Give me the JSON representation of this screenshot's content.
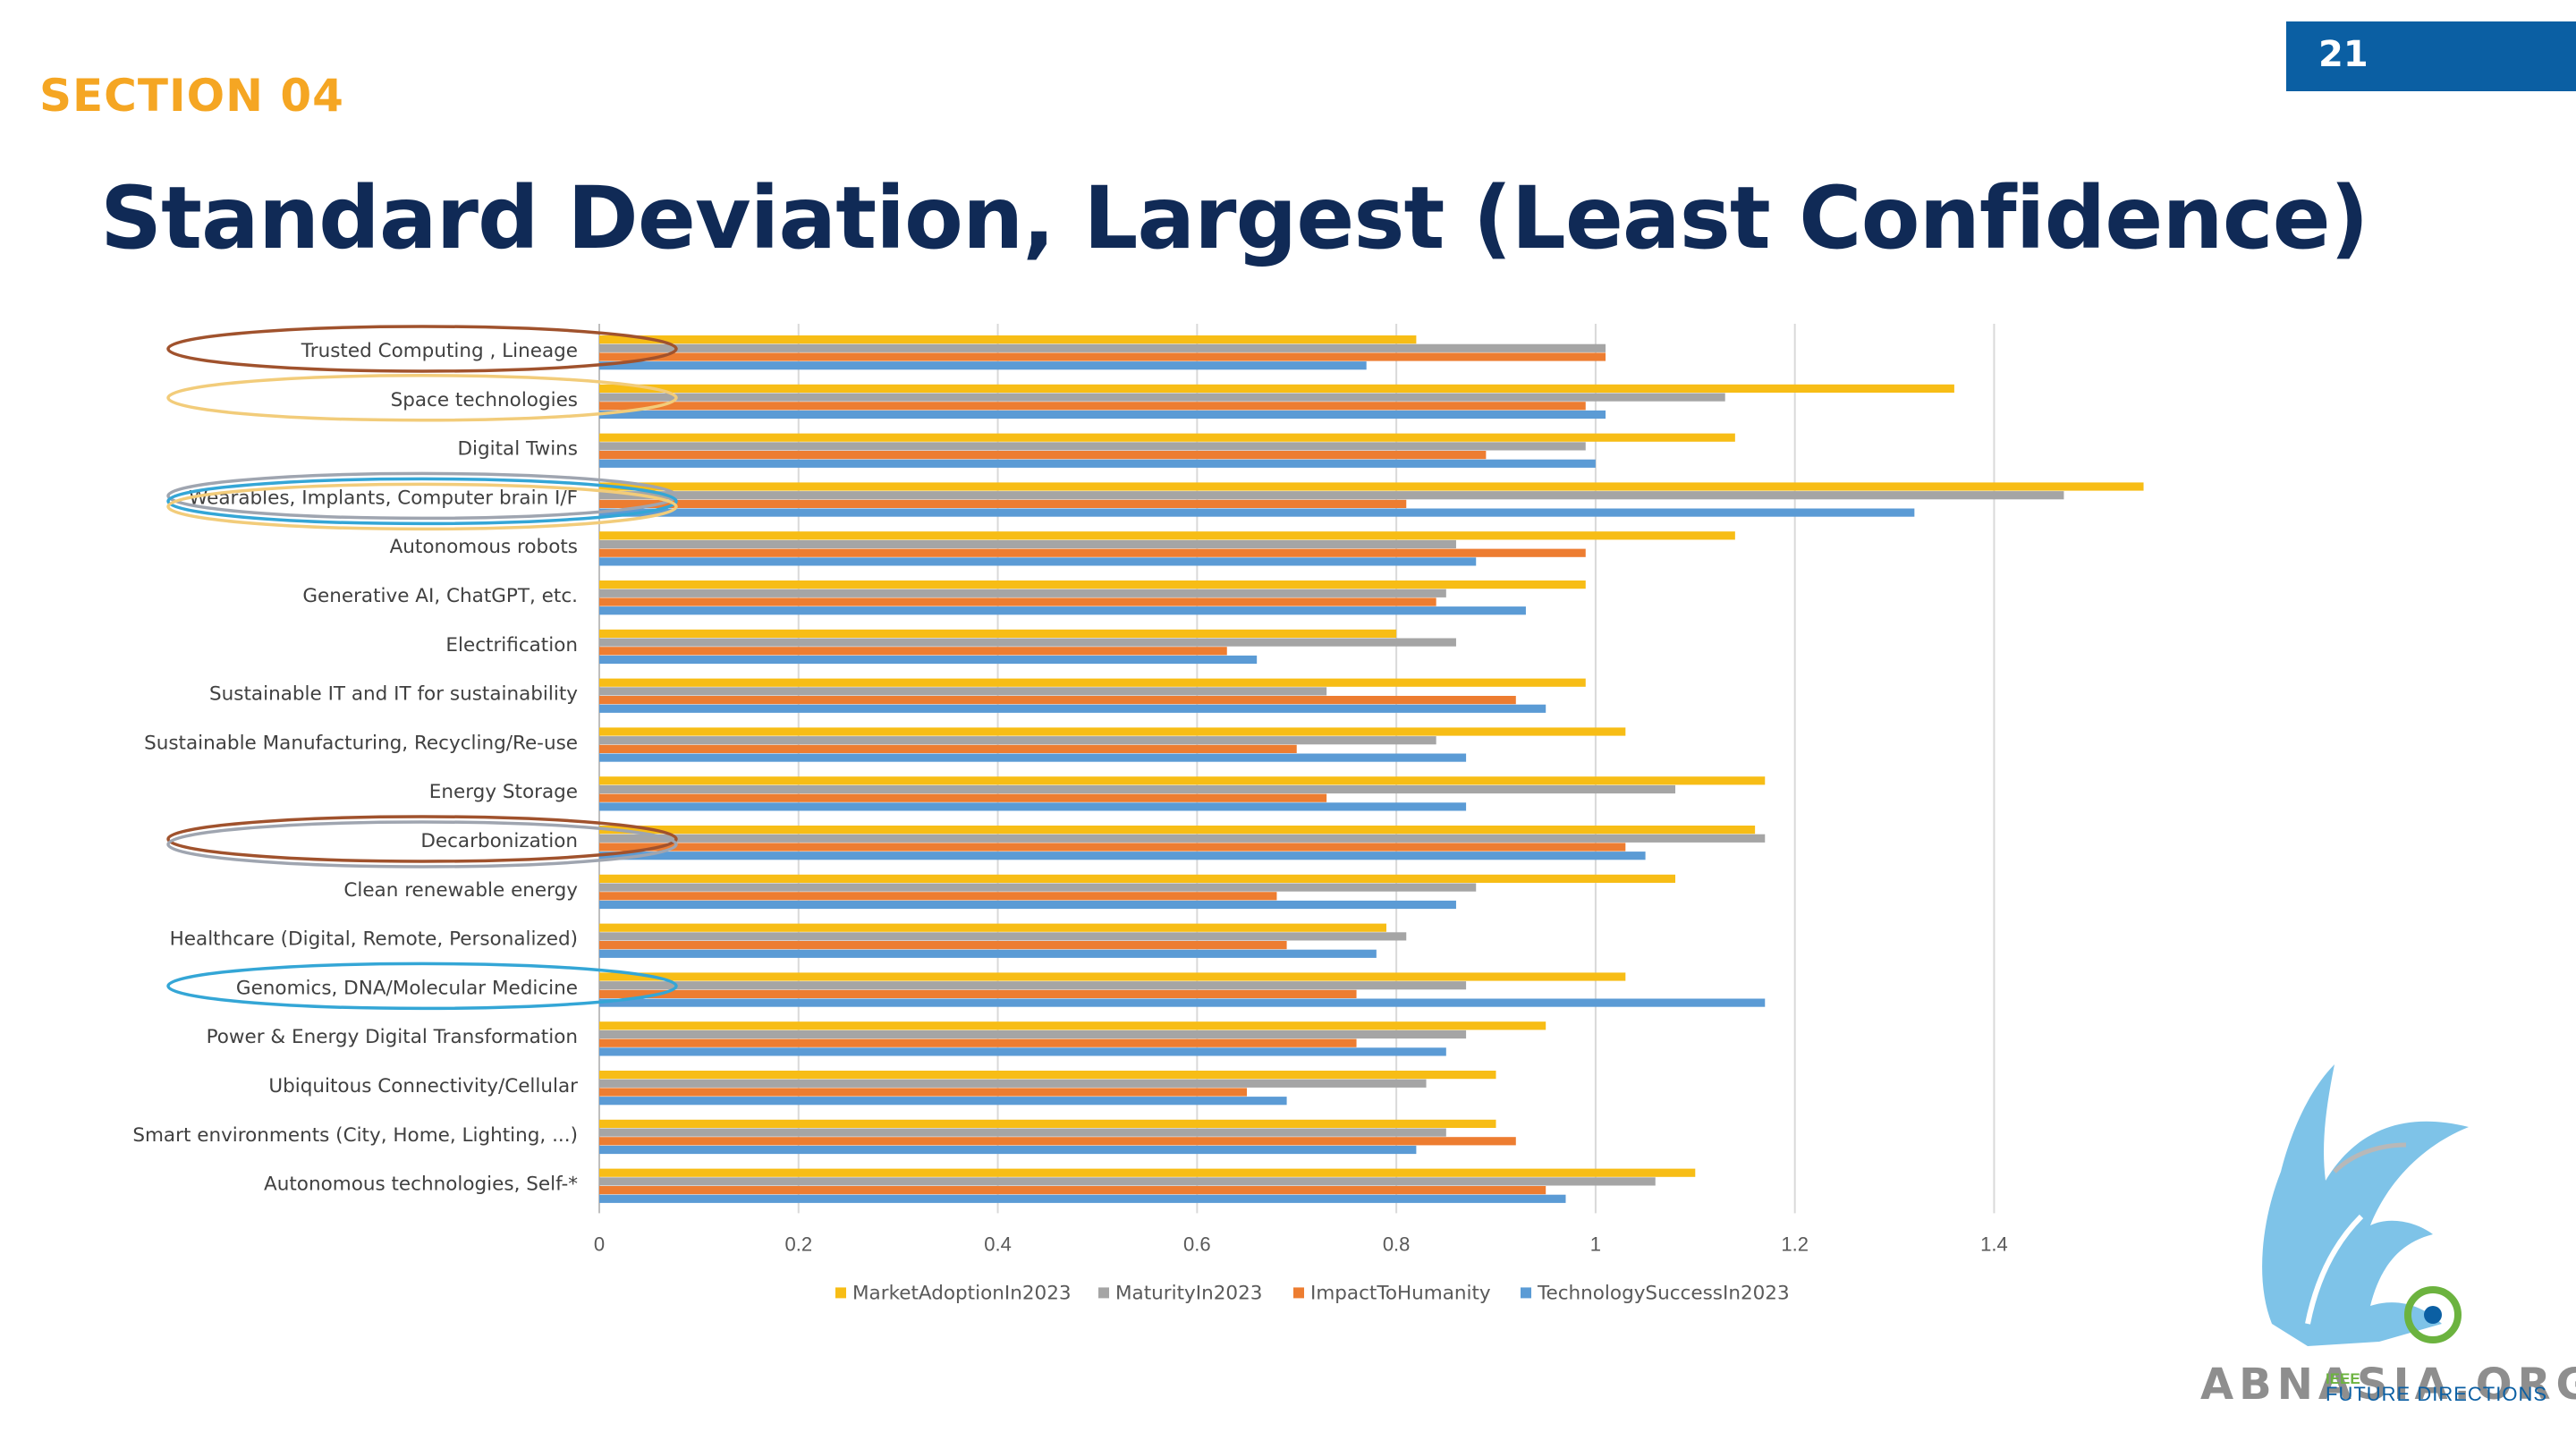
{
  "header": {
    "page_number": "21",
    "section": "SECTION 04",
    "title": "Standard Deviation, Largest (Least Confidence)"
  },
  "colors": {
    "accent_blue": "#0b5fa3",
    "section_orange": "#f5a623",
    "title_navy": "#102a56"
  },
  "logo": {
    "text": "ABNASIA.ORG",
    "ieee": "IEEE",
    "future_directions": "FUTURE DIRECTIONS"
  },
  "chart_data": {
    "type": "bar",
    "orientation": "horizontal",
    "categories": [
      "Trusted Computing , Lineage",
      "Space technologies",
      "Digital Twins",
      "Wearables,  Implants, Computer brain I/F",
      "Autonomous robots",
      "Generative AI, ChatGPT, etc.",
      "Electrification",
      "Sustainable IT and IT for sustainability",
      "Sustainable Manufacturing, Recycling/Re-use",
      "Energy Storage",
      "Decarbonization",
      "Clean renewable energy",
      "Healthcare (Digital, Remote, Personalized)",
      "Genomics, DNA/Molecular Medicine",
      "Power & Energy Digital Transformation",
      "Ubiquitous Connectivity/Cellular",
      "Smart environments (City, Home, Lighting, ...)",
      "Autonomous technologies, Self-*"
    ],
    "series": [
      {
        "name": "MarketAdoptionIn2023",
        "color": "#f7bd16",
        "values": [
          0.82,
          1.36,
          1.14,
          1.55,
          1.14,
          0.99,
          0.8,
          0.99,
          1.03,
          1.17,
          1.16,
          1.08,
          0.79,
          1.03,
          0.95,
          0.9,
          0.9,
          1.1
        ]
      },
      {
        "name": "MaturityIn2023",
        "color": "#a5a5a5",
        "values": [
          1.01,
          1.13,
          0.99,
          1.47,
          0.86,
          0.85,
          0.86,
          0.73,
          0.84,
          1.08,
          1.17,
          0.88,
          0.81,
          0.87,
          0.87,
          0.83,
          0.85,
          1.06
        ]
      },
      {
        "name": "ImpactToHumanity",
        "color": "#ed7d31",
        "values": [
          1.01,
          0.99,
          0.89,
          0.81,
          0.99,
          0.84,
          0.63,
          0.92,
          0.7,
          0.73,
          1.03,
          0.68,
          0.69,
          0.76,
          0.76,
          0.65,
          0.92,
          0.95
        ]
      },
      {
        "name": "TechnologySuccessIn2023",
        "color": "#5b9bd5",
        "values": [
          0.77,
          1.01,
          1.0,
          1.32,
          0.88,
          0.93,
          0.66,
          0.95,
          0.87,
          0.87,
          1.05,
          0.86,
          0.78,
          1.17,
          0.85,
          0.69,
          0.82,
          0.97
        ]
      }
    ],
    "xlim": [
      0,
      1.8
    ],
    "xticks": [
      "0",
      "0.2",
      "0.4",
      "0.6",
      "0.8",
      "1",
      "1.2",
      "1.4",
      "1.6",
      "1.8"
    ],
    "grid": true,
    "legend_position": "bottom",
    "highlights": [
      {
        "category": "Trusted Computing , Lineage",
        "color": "#a0522d"
      },
      {
        "category": "Space technologies",
        "color": "#f2cc7a"
      },
      {
        "category": "Wearables,  Implants, Computer brain I/F",
        "color": "#9fa5b0"
      },
      {
        "category": "Wearables,  Implants, Computer brain I/F",
        "color": "#34a6d6"
      },
      {
        "category": "Wearables,  Implants, Computer brain I/F",
        "color": "#f2cc7a"
      },
      {
        "category": "Decarbonization",
        "color": "#a0522d"
      },
      {
        "category": "Decarbonization",
        "color": "#9fa5b0"
      },
      {
        "category": "Genomics, DNA/Molecular Medicine",
        "color": "#34a6d6"
      }
    ]
  }
}
